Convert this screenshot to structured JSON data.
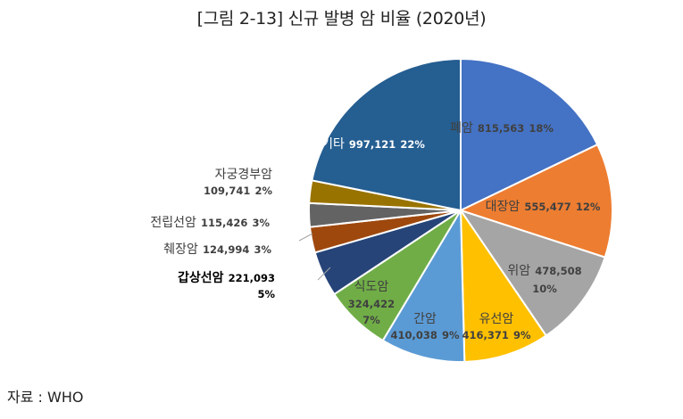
{
  "chart_data": {
    "type": "pie",
    "title": "[그림 2-13] 신규 발병 암 비율 (2020년)",
    "slices": [
      {
        "label": "폐암",
        "value": 815563,
        "value_text": "815,563",
        "percent_text": "18%",
        "color": "#4472C4"
      },
      {
        "label": "대장암",
        "value": 555477,
        "value_text": "555,477",
        "percent_text": "12%",
        "color": "#ED7D31"
      },
      {
        "label": "위암",
        "value": 478508,
        "value_text": "478,508",
        "percent_text": "10%",
        "color": "#A5A5A5"
      },
      {
        "label": "유선암",
        "value": 416371,
        "value_text": "416,371",
        "percent_text": "9%",
        "color": "#FFC000"
      },
      {
        "label": "간암",
        "value": 410038,
        "value_text": "410,038",
        "percent_text": "9%",
        "color": "#5B9BD5"
      },
      {
        "label": "식도암",
        "value": 324422,
        "value_text": "324,422",
        "percent_text": "7%",
        "color": "#70AD47"
      },
      {
        "label": "갑상선암",
        "value": 221093,
        "value_text": "221,093",
        "percent_text": "5%",
        "color": "#264478"
      },
      {
        "label": "췌장암",
        "value": 124994,
        "value_text": "124,994",
        "percent_text": "3%",
        "color": "#9E480E"
      },
      {
        "label": "전립선암",
        "value": 115426,
        "value_text": "115,426",
        "percent_text": "3%",
        "color": "#636363"
      },
      {
        "label": "자궁경부암",
        "value": 109741,
        "value_text": "109,741",
        "percent_text": "2%",
        "color": "#997300"
      },
      {
        "label": "기타",
        "value": 997121,
        "value_text": "997,121",
        "percent_text": "22%",
        "color": "#255E91"
      }
    ]
  },
  "source": "자료 : WHO"
}
